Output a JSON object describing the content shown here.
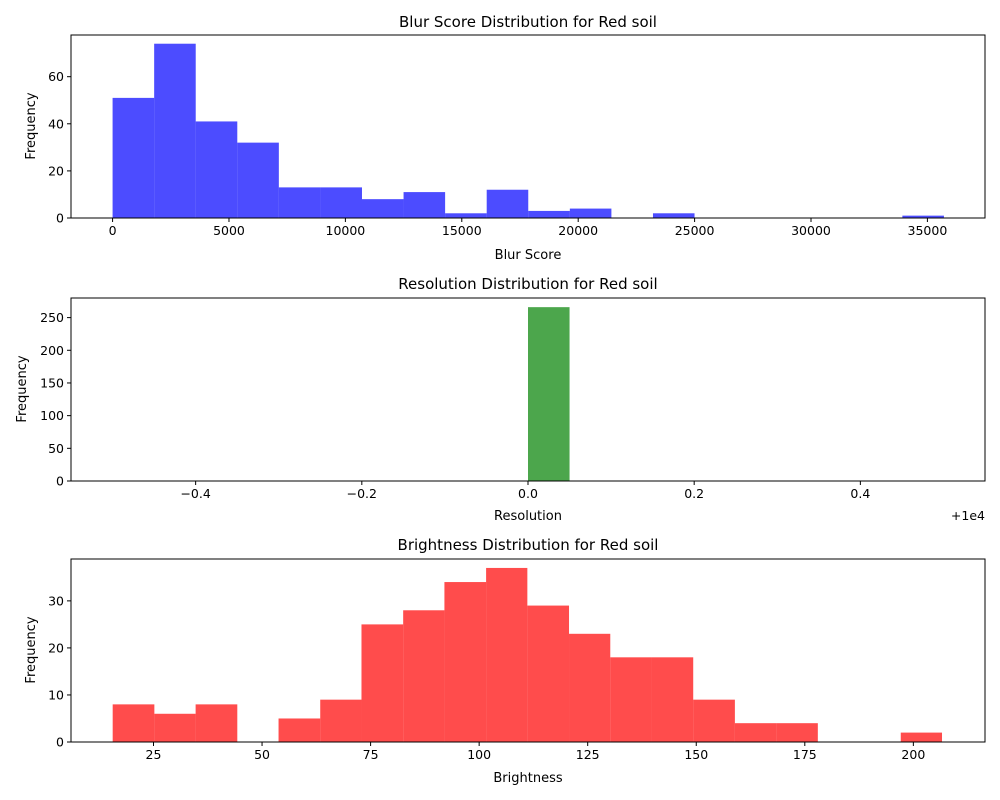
{
  "charts": [
    {
      "type": "bar",
      "title": "Blur Score Distribution for Red soil",
      "xlabel": "Blur Score",
      "ylabel": "Frequency",
      "color": "#0000ff",
      "xlim": [
        -1786,
        37474
      ],
      "ylim": [
        0,
        77.7
      ],
      "bins": [
        0,
        1786,
        3571,
        5357,
        7142,
        8928,
        10713,
        12499,
        14284,
        16070,
        17855,
        19641,
        21426,
        23212,
        24997,
        26783,
        28568,
        30354,
        32139,
        33925,
        35710
      ],
      "counts": [
        51,
        74,
        41,
        32,
        13,
        13,
        8,
        11,
        2,
        12,
        3,
        4,
        0,
        2,
        0,
        0,
        0,
        0,
        0,
        1
      ],
      "xticks": [
        0,
        5000,
        10000,
        15000,
        20000,
        25000,
        30000,
        35000
      ],
      "xtick_labels": [
        "0",
        "5000",
        "10000",
        "15000",
        "20000",
        "25000",
        "30000",
        "35000"
      ],
      "yticks": [
        0,
        20,
        40,
        60
      ],
      "ytick_labels": [
        "0",
        "20",
        "40",
        "60"
      ],
      "offset_text": ""
    },
    {
      "type": "bar",
      "title": "Resolution Distribution for Red soil",
      "xlabel": "Resolution",
      "ylabel": "Frequency",
      "color": "#008000",
      "xlim": [
        -0.55,
        0.55
      ],
      "ylim": [
        0,
        280
      ],
      "bins": [
        -0.5,
        -0.45,
        -0.4,
        -0.35,
        -0.3,
        -0.25,
        -0.2,
        -0.15,
        -0.1,
        -0.05,
        0.0,
        0.05,
        0.1,
        0.15,
        0.2,
        0.25,
        0.3,
        0.35,
        0.4,
        0.45,
        0.5
      ],
      "counts": [
        0,
        0,
        0,
        0,
        0,
        0,
        0,
        0,
        0,
        0,
        266,
        0,
        0,
        0,
        0,
        0,
        0,
        0,
        0,
        0
      ],
      "xticks": [
        -0.4,
        -0.2,
        0.0,
        0.2,
        0.4
      ],
      "xtick_labels": [
        "−0.4",
        "−0.2",
        "0.0",
        "0.2",
        "0.4"
      ],
      "yticks": [
        0,
        50,
        100,
        150,
        200,
        250
      ],
      "ytick_labels": [
        "0",
        "50",
        "100",
        "150",
        "200",
        "250"
      ],
      "offset_text": "+1e4"
    },
    {
      "type": "bar",
      "title": "Brightness Distribution for Red soil",
      "xlabel": "Brightness",
      "ylabel": "Frequency",
      "color": "#ff0000",
      "xlim": [
        6.0,
        216.5
      ],
      "ylim": [
        0,
        38.9
      ],
      "bins": [
        15.6,
        25.2,
        34.7,
        44.3,
        53.8,
        63.4,
        72.9,
        82.5,
        92.0,
        101.6,
        111.1,
        120.7,
        130.2,
        139.8,
        149.3,
        158.9,
        168.4,
        178.0,
        187.5,
        197.1,
        206.6
      ],
      "counts": [
        8,
        6,
        8,
        0,
        5,
        9,
        25,
        28,
        34,
        37,
        29,
        23,
        18,
        18,
        9,
        4,
        4,
        0,
        0,
        2
      ],
      "xticks": [
        25,
        50,
        75,
        100,
        125,
        150,
        175,
        200
      ],
      "xtick_labels": [
        "25",
        "50",
        "75",
        "100",
        "125",
        "150",
        "175",
        "200"
      ],
      "yticks": [
        0,
        10,
        20,
        30
      ],
      "ytick_labels": [
        "0",
        "10",
        "20",
        "30"
      ],
      "offset_text": ""
    }
  ]
}
